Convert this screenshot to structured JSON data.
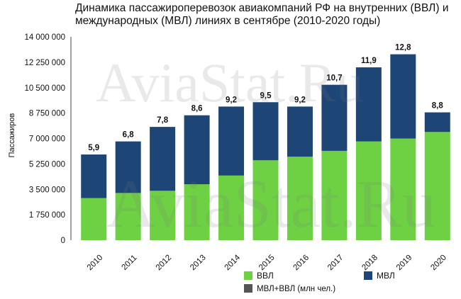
{
  "chart_data": {
    "type": "bar",
    "stacked": true,
    "title": "Динамика пассажироперевозок авиакомпаний РФ на внутренних (ВВЛ) и международных (МВЛ) линиях в сентябре (2010-2020 годы)",
    "xlabel": "",
    "ylabel": "Пассажиров",
    "ylim": [
      0,
      14000000
    ],
    "yticks": [
      0,
      1750000,
      3500000,
      5250000,
      7000000,
      8750000,
      10500000,
      12250000,
      14000000
    ],
    "ytick_labels": [
      "0",
      "1 750 000",
      "3 500 000",
      "5 250 000",
      "7 000 000",
      "8 750 000",
      "10 500 000",
      "12 250 000",
      "14 000 000"
    ],
    "categories": [
      "2010",
      "2011",
      "2012",
      "2013",
      "2014",
      "2015",
      "2016",
      "2017",
      "2018",
      "2019",
      "2020"
    ],
    "series": [
      {
        "name": "ВВЛ",
        "color": "#6ed144",
        "values": [
          2900000,
          3250000,
          3400000,
          3850000,
          4450000,
          5500000,
          5750000,
          6150000,
          6800000,
          7000000,
          7450000
        ]
      },
      {
        "name": "МВЛ",
        "color": "#1d4677",
        "values": [
          3000000,
          3550000,
          4400000,
          4750000,
          4750000,
          4000000,
          3450000,
          4550000,
          5100000,
          5800000,
          1350000
        ]
      }
    ],
    "totals_label_series": "МВЛ+ВВЛ (млн чел.)",
    "totals_color": "#555555",
    "data_labels": [
      "5,9",
      "6,8",
      "7,8",
      "8,6",
      "9,2",
      "9,5",
      "9,2",
      "10,7",
      "11,9",
      "12,8",
      "8,8"
    ],
    "grid": false,
    "legend": "bottom-right"
  },
  "watermark": "AviaStat.Ru"
}
